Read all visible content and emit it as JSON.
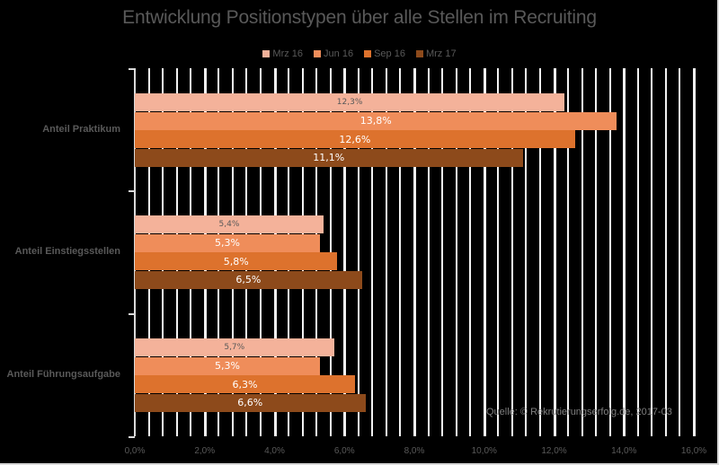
{
  "chart_data": {
    "type": "bar",
    "orientation": "horizontal",
    "title": "Entwicklung Positionstypen über alle Stellen im Recruiting",
    "categories": [
      "Anteil Praktikum",
      "Anteil Einstiegsstellen",
      "Anteil Führungsaufgabe"
    ],
    "series": [
      {
        "name": "Mrz 16",
        "color": "#f4b29a",
        "values": [
          12.3,
          5.4,
          5.7
        ],
        "labels": [
          "12,3%",
          "5,4%",
          "5,7%"
        ]
      },
      {
        "name": "Jun 16",
        "color": "#ef8d5a",
        "values": [
          13.8,
          5.3,
          5.3
        ],
        "labels": [
          "13,8%",
          "5,3%",
          "5,3%"
        ]
      },
      {
        "name": "Sep 16",
        "color": "#dd722d",
        "values": [
          12.6,
          5.8,
          6.3
        ],
        "labels": [
          "12,6%",
          "5,8%",
          "6,3%"
        ]
      },
      {
        "name": "Mrz 17",
        "color": "#8d4a1b",
        "values": [
          11.1,
          6.5,
          6.6
        ],
        "labels": [
          "11,1%",
          "6,5%",
          "6,6%"
        ]
      }
    ],
    "xlabel": "",
    "ylabel": "",
    "xlim": [
      0,
      16
    ],
    "xticks": [
      "0,0%",
      "2,0%",
      "4,0%",
      "6,0%",
      "8,0%",
      "10,0%",
      "12,0%",
      "14,0%",
      "16,0%"
    ],
    "grid": true,
    "legend_position": "top",
    "annotation": "Quelle: © Rekrutierungserfolg.de, 2017-03",
    "background": "#000000"
  }
}
